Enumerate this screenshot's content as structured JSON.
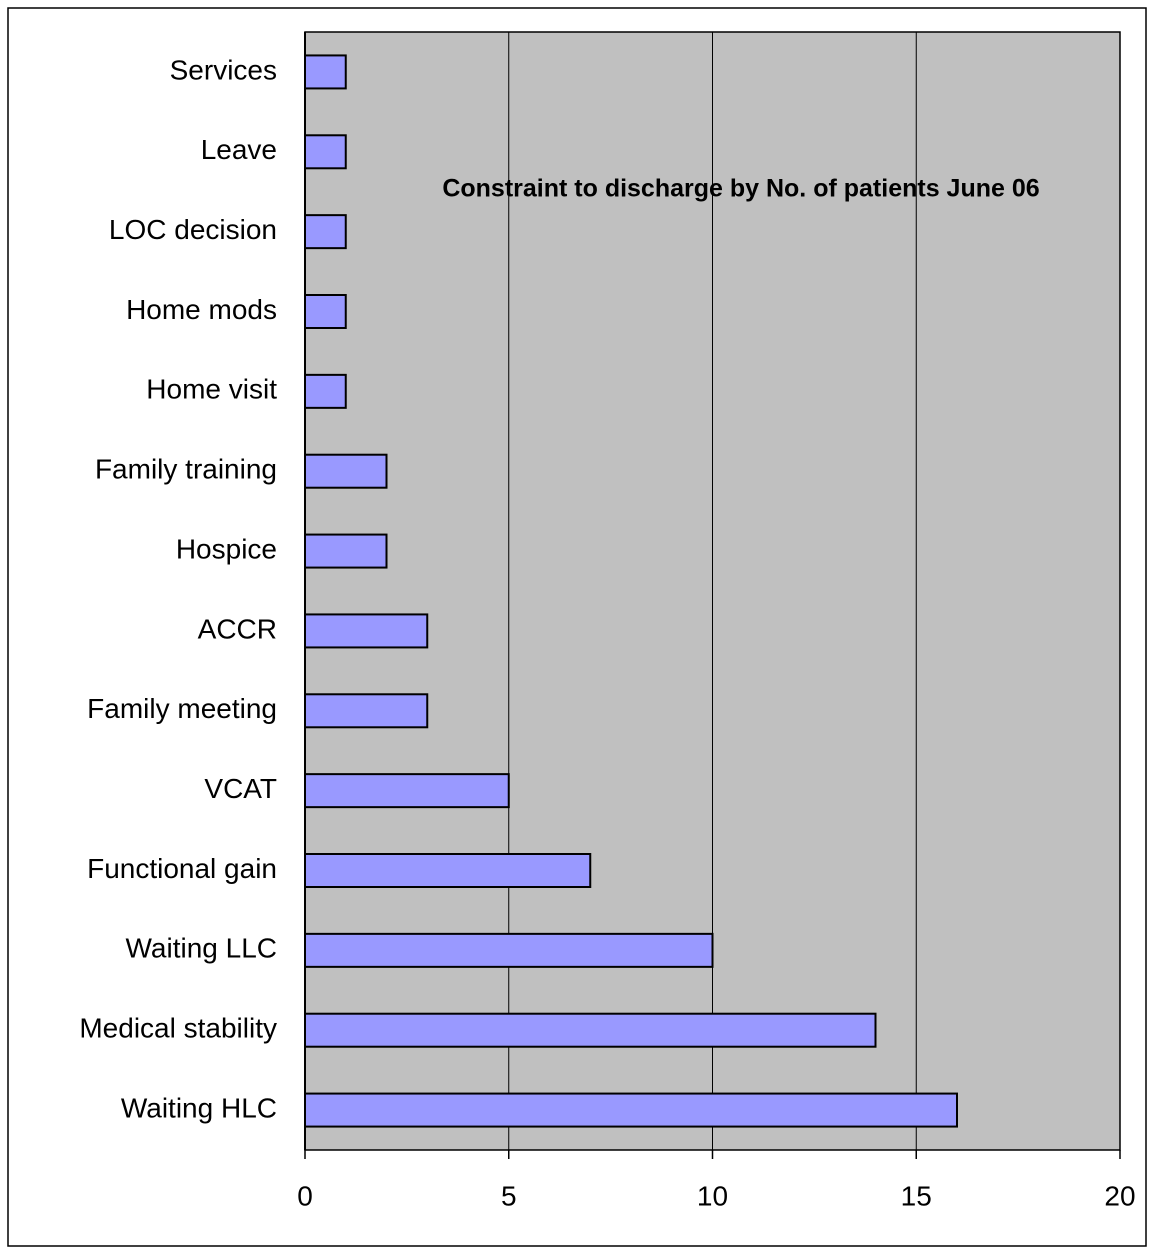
{
  "chart_data": {
    "type": "bar",
    "orientation": "horizontal",
    "title": "Constraint to discharge by No. of patients June 06",
    "categories": [
      "Services",
      "Leave",
      "LOC decision",
      "Home mods",
      "Home visit",
      "Family training",
      "Hospice",
      "ACCR",
      "Family meeting",
      "VCAT",
      "Functional gain",
      "Waiting LLC",
      "Medical stability",
      "Waiting HLC"
    ],
    "values": [
      1,
      1,
      1,
      1,
      1,
      2,
      2,
      3,
      3,
      5,
      7,
      10,
      14,
      16
    ],
    "color": "#9999ff",
    "xlim": [
      0,
      20
    ],
    "xticks": [
      0,
      5,
      10,
      15,
      20
    ],
    "grid": true
  }
}
